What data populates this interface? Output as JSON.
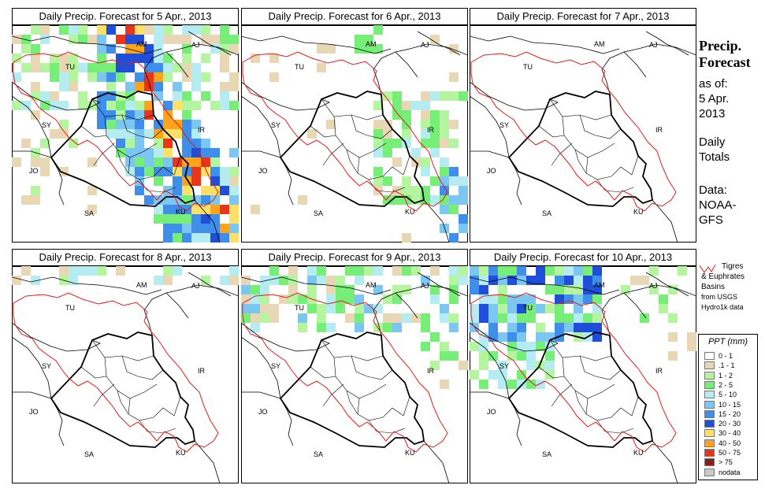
{
  "panels": [
    {
      "title": "Daily Precip. Forecast for  5 Apr., 2013",
      "intensity": "heavy"
    },
    {
      "title": "Daily Precip. Forecast for  6 Apr., 2013",
      "intensity": "moderate"
    },
    {
      "title": "Daily Precip. Forecast for  7 Apr., 2013",
      "intensity": "none"
    },
    {
      "title": "Daily Precip. Forecast for  8 Apr., 2013",
      "intensity": "light"
    },
    {
      "title": "Daily Precip. Forecast for  9 Apr., 2013",
      "intensity": "north-band"
    },
    {
      "title": "Daily Precip. Forecast for  10 Apr., 2013",
      "intensity": "north-heavy"
    }
  ],
  "map_labels": {
    "am": "AM",
    "aj": "AJ",
    "tu": "TU",
    "sy": "SY",
    "ir": "IR",
    "jo": "JO",
    "sa": "SA",
    "ku": "KU"
  },
  "side": {
    "title_line1": "Precip.",
    "title_line2": "Forecast",
    "asof_line1": "as of:",
    "asof_line2": "5 Apr.",
    "asof_line3": "2013",
    "daily_line1": "Daily",
    "daily_line2": "Totals",
    "data_line1": "Data:",
    "data_line2": "NOAA-",
    "data_line3": "GFS"
  },
  "basin_note": {
    "line1": "Tigres",
    "line2": "& Euphrates",
    "line3": "Basins",
    "line4": "from USGS",
    "line5": "Hydro1k data"
  },
  "legend": {
    "title": "PPT (mm)",
    "items": [
      {
        "label": "0 - 1",
        "color": "#ffffff"
      },
      {
        "label": ".1 - 1",
        "color": "#e8d7b5"
      },
      {
        "label": "1 - 2",
        "color": "#b6f5a0"
      },
      {
        "label": "2 - 5",
        "color": "#77ee77"
      },
      {
        "label": "5 - 10",
        "color": "#b4ecf2"
      },
      {
        "label": "10 - 15",
        "color": "#7cc7f2"
      },
      {
        "label": "15 - 20",
        "color": "#3e8eea"
      },
      {
        "label": "20 - 30",
        "color": "#1f4fd8"
      },
      {
        "label": "30 - 40",
        "color": "#ffe066"
      },
      {
        "label": "40 - 50",
        "color": "#ffa31a"
      },
      {
        "label": "50 - 75",
        "color": "#e8361a"
      },
      {
        "label": "> 75",
        "color": "#8b1d1d"
      },
      {
        "label": "nodata",
        "color": "#c9c9c9"
      }
    ]
  }
}
